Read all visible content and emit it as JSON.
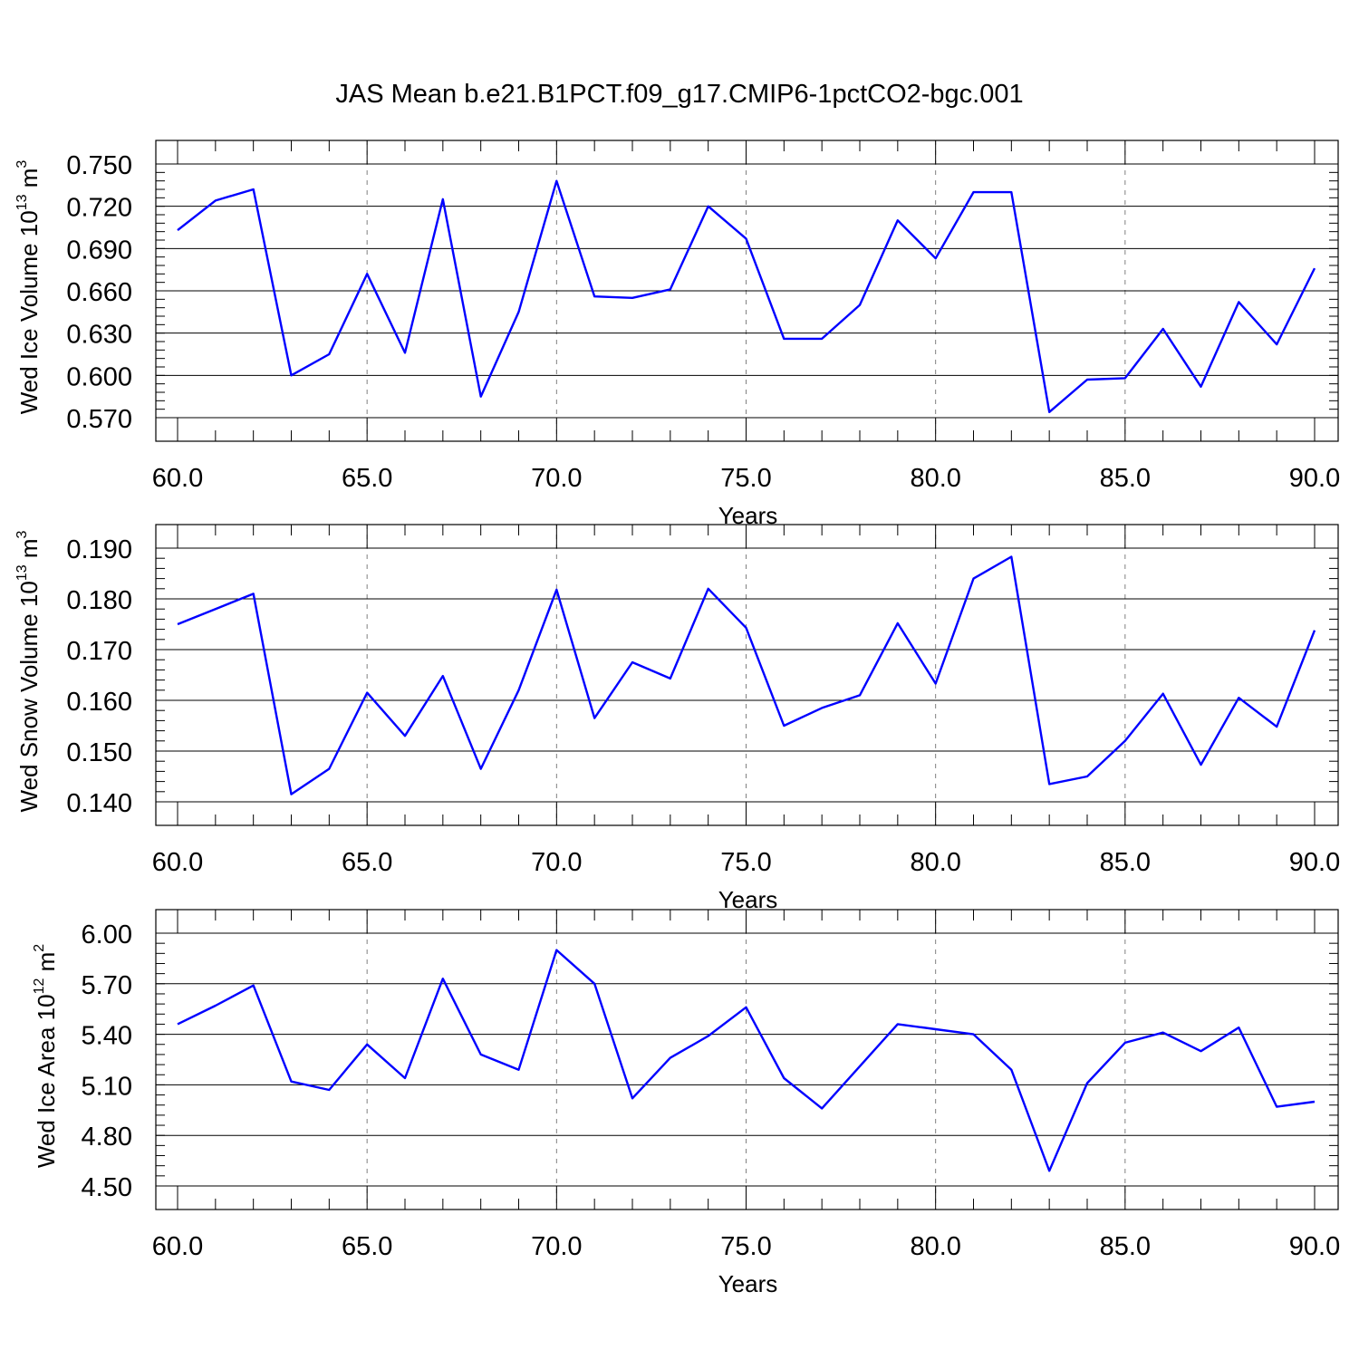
{
  "title": "JAS Mean b.e21.B1PCT.f09_g17.CMIP6-1pctCO2-bgc.001",
  "colors": {
    "line": "#0000ff",
    "axis": "#000000",
    "grid": "#808080"
  },
  "chart_data": [
    {
      "type": "line",
      "ylabel": "Wed Ice Volume 10",
      "ylabel_exp": "13",
      "ylabel_unit": " m",
      "ylabel_unit_exp": "3",
      "xlabel": "Years",
      "xlim": [
        60,
        90
      ],
      "ylim": [
        0.57,
        0.75
      ],
      "xticks": [
        60,
        65,
        70,
        75,
        80,
        85,
        90
      ],
      "xtick_labels": [
        "60.0",
        "65.0",
        "70.0",
        "75.0",
        "80.0",
        "85.0",
        "90.0"
      ],
      "yticks": [
        0.57,
        0.6,
        0.63,
        0.66,
        0.69,
        0.72,
        0.75
      ],
      "ytick_labels": [
        "0.570",
        "0.600",
        "0.630",
        "0.660",
        "0.690",
        "0.720",
        "0.750"
      ],
      "grid": "vertical dashed at major x ticks",
      "x": [
        60,
        61,
        62,
        63,
        64,
        65,
        66,
        67,
        68,
        69,
        70,
        71,
        72,
        73,
        74,
        75,
        76,
        77,
        78,
        79,
        80,
        81,
        82,
        83,
        84,
        85,
        86,
        87,
        88,
        89,
        90
      ],
      "y": [
        0.703,
        0.724,
        0.732,
        0.6,
        0.615,
        0.672,
        0.616,
        0.725,
        0.585,
        0.645,
        0.738,
        0.656,
        0.655,
        0.661,
        0.72,
        0.697,
        0.626,
        0.626,
        0.65,
        0.71,
        0.683,
        0.73,
        0.73,
        0.574,
        0.597,
        0.598,
        0.633,
        0.592,
        0.652,
        0.622,
        0.676
      ]
    },
    {
      "type": "line",
      "ylabel": "Wed Snow Volume 10",
      "ylabel_exp": "13",
      "ylabel_unit": " m",
      "ylabel_unit_exp": "3",
      "xlabel": "Years",
      "xlim": [
        60,
        90
      ],
      "ylim": [
        0.14,
        0.19
      ],
      "xticks": [
        60,
        65,
        70,
        75,
        80,
        85,
        90
      ],
      "xtick_labels": [
        "60.0",
        "65.0",
        "70.0",
        "75.0",
        "80.0",
        "85.0",
        "90.0"
      ],
      "yticks": [
        0.14,
        0.15,
        0.16,
        0.17,
        0.18,
        0.19
      ],
      "ytick_labels": [
        "0.140",
        "0.150",
        "0.160",
        "0.170",
        "0.180",
        "0.190"
      ],
      "grid": "vertical dashed at major x ticks",
      "x": [
        60,
        61,
        62,
        63,
        64,
        65,
        66,
        67,
        68,
        69,
        70,
        71,
        72,
        73,
        74,
        75,
        76,
        77,
        78,
        79,
        80,
        81,
        82,
        83,
        84,
        85,
        86,
        87,
        88,
        89,
        90
      ],
      "y": [
        0.175,
        0.178,
        0.181,
        0.1415,
        0.1465,
        0.1615,
        0.153,
        0.1648,
        0.1465,
        0.162,
        0.1818,
        0.1565,
        0.1675,
        0.1643,
        0.182,
        0.1743,
        0.155,
        0.1585,
        0.161,
        0.1752,
        0.1633,
        0.184,
        0.1883,
        0.1435,
        0.145,
        0.152,
        0.1613,
        0.1473,
        0.1605,
        0.1548,
        0.1738
      ]
    },
    {
      "type": "line",
      "ylabel": "Wed Ice Area 10",
      "ylabel_exp": "12",
      "ylabel_unit": " m",
      "ylabel_unit_exp": "2",
      "xlabel": "Years",
      "xlim": [
        60,
        90
      ],
      "ylim": [
        4.5,
        6.0
      ],
      "xticks": [
        60,
        65,
        70,
        75,
        80,
        85,
        90
      ],
      "xtick_labels": [
        "60.0",
        "65.0",
        "70.0",
        "75.0",
        "80.0",
        "85.0",
        "90.0"
      ],
      "yticks": [
        4.5,
        4.8,
        5.1,
        5.4,
        5.7,
        6.0
      ],
      "ytick_labels": [
        "4.50",
        "4.80",
        "5.10",
        "5.40",
        "5.70",
        "6.00"
      ],
      "grid": "vertical dashed at major x ticks",
      "x": [
        60,
        61,
        62,
        63,
        64,
        65,
        66,
        67,
        68,
        69,
        70,
        71,
        72,
        73,
        74,
        75,
        76,
        77,
        78,
        79,
        80,
        81,
        82,
        83,
        84,
        85,
        86,
        87,
        88,
        89,
        90
      ],
      "y": [
        5.46,
        5.57,
        5.69,
        5.12,
        5.07,
        5.34,
        5.14,
        5.73,
        5.28,
        5.19,
        5.9,
        5.7,
        5.02,
        5.26,
        5.39,
        5.56,
        5.14,
        4.96,
        5.21,
        5.46,
        5.43,
        5.4,
        5.19,
        4.59,
        5.11,
        5.35,
        5.41,
        5.3,
        5.44,
        4.97,
        5.0
      ]
    }
  ]
}
